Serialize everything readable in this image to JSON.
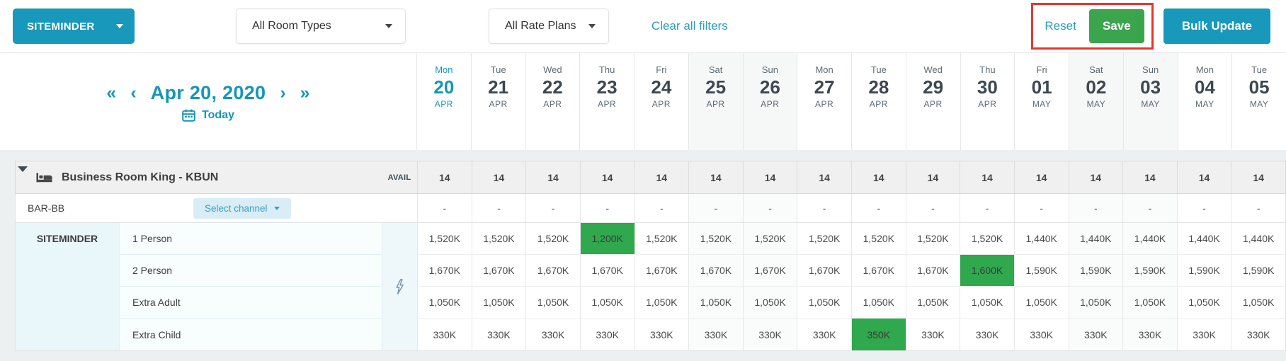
{
  "toolbar": {
    "channel_selector": "SITEMINDER",
    "room_types_filter": "All Room Types",
    "rate_plans_filter": "All Rate Plans",
    "clear_filters": "Clear all filters",
    "reset": "Reset",
    "save": "Save",
    "bulk_update": "Bulk Update"
  },
  "date_nav": {
    "current_date": "Apr 20, 2020",
    "today": "Today",
    "prev_fast": "«",
    "prev": "‹",
    "next": "›",
    "next_fast": "»"
  },
  "calendar": {
    "days": [
      {
        "dow": "Mon",
        "day": "20",
        "month": "APR",
        "is_today": true,
        "is_weekend": false
      },
      {
        "dow": "Tue",
        "day": "21",
        "month": "APR",
        "is_today": false,
        "is_weekend": false
      },
      {
        "dow": "Wed",
        "day": "22",
        "month": "APR",
        "is_today": false,
        "is_weekend": false
      },
      {
        "dow": "Thu",
        "day": "23",
        "month": "APR",
        "is_today": false,
        "is_weekend": false
      },
      {
        "dow": "Fri",
        "day": "24",
        "month": "APR",
        "is_today": false,
        "is_weekend": false
      },
      {
        "dow": "Sat",
        "day": "25",
        "month": "APR",
        "is_today": false,
        "is_weekend": true
      },
      {
        "dow": "Sun",
        "day": "26",
        "month": "APR",
        "is_today": false,
        "is_weekend": true
      },
      {
        "dow": "Mon",
        "day": "27",
        "month": "APR",
        "is_today": false,
        "is_weekend": false
      },
      {
        "dow": "Tue",
        "day": "28",
        "month": "APR",
        "is_today": false,
        "is_weekend": false
      },
      {
        "dow": "Wed",
        "day": "29",
        "month": "APR",
        "is_today": false,
        "is_weekend": false
      },
      {
        "dow": "Thu",
        "day": "30",
        "month": "APR",
        "is_today": false,
        "is_weekend": false
      },
      {
        "dow": "Fri",
        "day": "01",
        "month": "MAY",
        "is_today": false,
        "is_weekend": false
      },
      {
        "dow": "Sat",
        "day": "02",
        "month": "MAY",
        "is_today": false,
        "is_weekend": true
      },
      {
        "dow": "Sun",
        "day": "03",
        "month": "MAY",
        "is_today": false,
        "is_weekend": true
      },
      {
        "dow": "Mon",
        "day": "04",
        "month": "MAY",
        "is_today": false,
        "is_weekend": false
      },
      {
        "dow": "Tue",
        "day": "05",
        "month": "MAY",
        "is_today": false,
        "is_weekend": false
      }
    ]
  },
  "room": {
    "name": "Business Room King - KBUN",
    "avail_label": "AVAIL",
    "availability": [
      "14",
      "14",
      "14",
      "14",
      "14",
      "14",
      "14",
      "14",
      "14",
      "14",
      "14",
      "14",
      "14",
      "14",
      "14",
      "14"
    ]
  },
  "rate_plan": {
    "name": "BAR-BB",
    "select_channel_label": "Select channel",
    "values": [
      "-",
      "-",
      "-",
      "-",
      "-",
      "-",
      "-",
      "-",
      "-",
      "-",
      "-",
      "-",
      "-",
      "-",
      "-",
      "-"
    ]
  },
  "channel_block": {
    "channel": "SITEMINDER",
    "rows": [
      {
        "label": "1 Person",
        "highlight_index": 3,
        "values": [
          "1,520K",
          "1,520K",
          "1,520K",
          "1,200K",
          "1,520K",
          "1,520K",
          "1,520K",
          "1,520K",
          "1,520K",
          "1,520K",
          "1,520K",
          "1,440K",
          "1,440K",
          "1,440K",
          "1,440K",
          "1,440K"
        ]
      },
      {
        "label": "2 Person",
        "highlight_index": 10,
        "values": [
          "1,670K",
          "1,670K",
          "1,670K",
          "1,670K",
          "1,670K",
          "1,670K",
          "1,670K",
          "1,670K",
          "1,670K",
          "1,670K",
          "1,600K",
          "1,590K",
          "1,590K",
          "1,590K",
          "1,590K",
          "1,590K"
        ]
      },
      {
        "label": "Extra Adult",
        "highlight_index": null,
        "values": [
          "1,050K",
          "1,050K",
          "1,050K",
          "1,050K",
          "1,050K",
          "1,050K",
          "1,050K",
          "1,050K",
          "1,050K",
          "1,050K",
          "1,050K",
          "1,050K",
          "1,050K",
          "1,050K",
          "1,050K",
          "1,050K"
        ]
      },
      {
        "label": "Extra Child",
        "highlight_index": 8,
        "values": [
          "330K",
          "330K",
          "330K",
          "330K",
          "330K",
          "330K",
          "330K",
          "330K",
          "350K",
          "330K",
          "330K",
          "330K",
          "330K",
          "330K",
          "330K",
          "330K"
        ]
      }
    ]
  },
  "colors": {
    "accent_teal": "#1898ba",
    "nav_teal": "#1596b8",
    "link_teal": "#2d9dbd",
    "save_green": "#3aa54d",
    "highlight_green": "#2fa84e",
    "annotation_red": "#e6362c"
  }
}
